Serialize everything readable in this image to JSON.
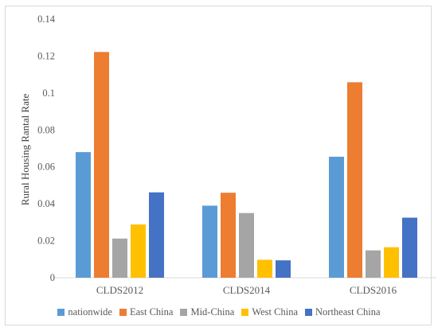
{
  "chart_data": {
    "type": "bar",
    "categories": [
      "CLDS2012",
      "CLDS2014",
      "CLDS2016"
    ],
    "series": [
      {
        "name": "nationwide",
        "color": "#5B9BD5",
        "values": [
          0.068,
          0.039,
          0.0655
        ]
      },
      {
        "name": "East China",
        "color": "#ED7D31",
        "values": [
          0.1222,
          0.046,
          0.1058
        ]
      },
      {
        "name": "Mid-China",
        "color": "#A5A5A5",
        "values": [
          0.0212,
          0.035,
          0.0148
        ]
      },
      {
        "name": "West China",
        "color": "#FFC000",
        "values": [
          0.0288,
          0.0097,
          0.0165
        ]
      },
      {
        "name": "Northeast China",
        "color": "#4472C4",
        "values": [
          0.0462,
          0.0094,
          0.0325
        ]
      }
    ],
    "ylabel": "Rural Housing Rantal Rate",
    "ylim": [
      0,
      0.14
    ],
    "yticks": [
      "0",
      "0.02",
      "0.04",
      "0.06",
      "0.08",
      "0.1",
      "0.12",
      "0.14"
    ],
    "grid": false,
    "legend_position": "bottom"
  }
}
